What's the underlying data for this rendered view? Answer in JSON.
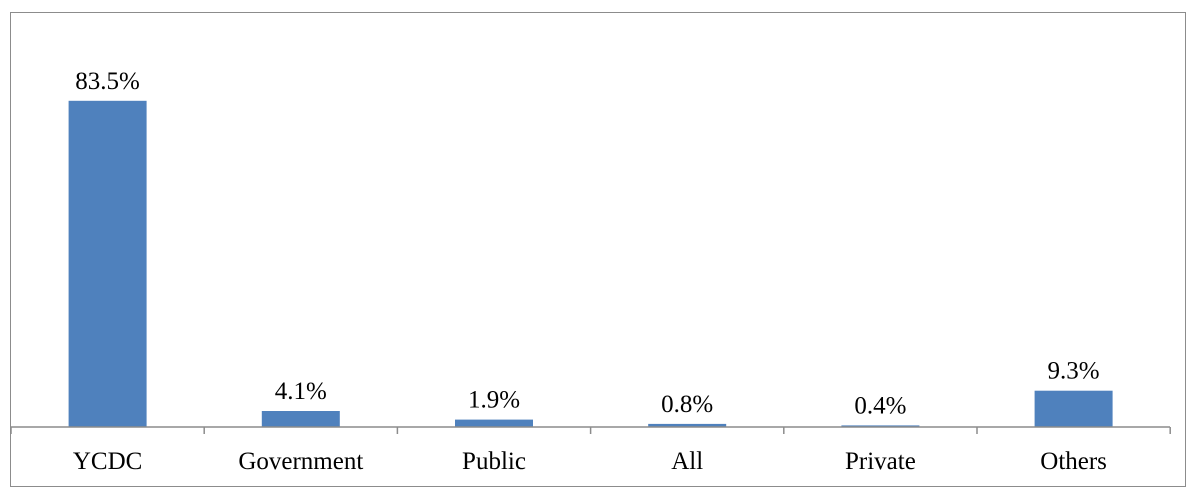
{
  "chart_data": {
    "type": "bar",
    "categories": [
      "YCDC",
      "Government",
      "Public",
      "All",
      "Private",
      "Others"
    ],
    "values": [
      83.5,
      4.1,
      1.9,
      0.8,
      0.4,
      9.3
    ],
    "data_labels": [
      "83.5%",
      "4.1%",
      "1.9%",
      "0.8%",
      "0.4%",
      "9.3%"
    ],
    "value_unit": "%",
    "title": "",
    "xlabel": "",
    "ylabel": "",
    "ylim": [
      0,
      100
    ],
    "grid": false,
    "legend": "none",
    "colors": {
      "bar": "#4f81bd",
      "axis": "#8c8c8c",
      "frame": "#8c8c8c",
      "text": "#000000"
    }
  }
}
